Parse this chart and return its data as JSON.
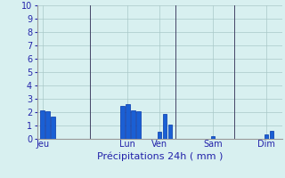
{
  "xlabel": "Précipitations 24h ( mm )",
  "background_color": "#d8f0f0",
  "bar_color": "#1a5fd4",
  "bar_edge_color": "#0033aa",
  "ylim": [
    0,
    10
  ],
  "yticks": [
    0,
    1,
    2,
    3,
    4,
    5,
    6,
    7,
    8,
    9,
    10
  ],
  "grid_color": "#aac8c8",
  "day_labels": [
    "Jeu",
    "Lun",
    "Ven",
    "Sam",
    "Dim"
  ],
  "day_tick_positions": [
    0.5,
    8.5,
    11.5,
    16.5,
    21.5
  ],
  "bar_positions": [
    0.5,
    1.0,
    1.5,
    8.0,
    8.5,
    9.0,
    9.5,
    10.0,
    11.5,
    12.0,
    12.5,
    16.5,
    17.0,
    21.0,
    21.5,
    22.0
  ],
  "bar_heights": [
    2.15,
    2.05,
    1.7,
    2.45,
    2.62,
    2.15,
    2.1,
    0.0,
    0.55,
    1.85,
    1.05,
    0.2,
    0.0,
    0.0,
    0.35,
    0.62
  ],
  "xlim": [
    0,
    23
  ],
  "vline_positions": [
    5.0,
    13.0,
    18.5
  ],
  "vline_color": "#444466",
  "xlabel_color": "#2222aa",
  "tick_color": "#2222aa",
  "tick_fontsize": 7,
  "xlabel_fontsize": 8
}
